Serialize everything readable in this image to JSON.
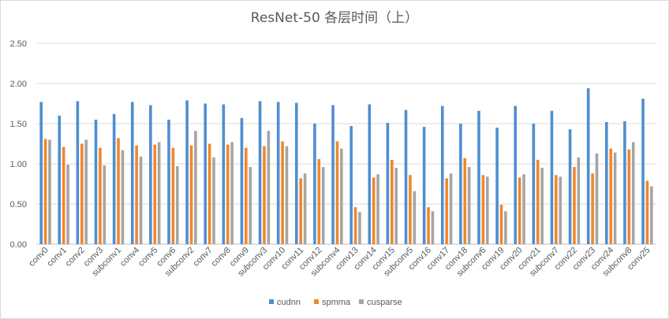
{
  "chart_data": {
    "type": "bar",
    "title": "ResNet-50 各层时间（上）",
    "ylim": [
      0,
      2.5
    ],
    "yticks": [
      "0.00",
      "0.50",
      "1.00",
      "1.50",
      "2.00",
      "2.50"
    ],
    "grid": true,
    "legend_position": "bottom",
    "categories": [
      "conv0",
      "conv1",
      "conv2",
      "conv3",
      "subconv1",
      "conv4",
      "conv5",
      "conv6",
      "subconv2",
      "conv7",
      "conv8",
      "conv9",
      "subconv3",
      "conv10",
      "conv11",
      "conv12",
      "subconv4",
      "conv13",
      "conv14",
      "conv15",
      "subconv5",
      "conv16",
      "conv17",
      "conv18",
      "subconv6",
      "conv19",
      "conv20",
      "conv21",
      "subconv7",
      "conv22",
      "conv23",
      "conv24",
      "subconv8",
      "conv25"
    ],
    "series": [
      {
        "name": "cudnn",
        "color": "#4e8fd0",
        "values": [
          1.77,
          1.6,
          1.78,
          1.55,
          1.62,
          1.77,
          1.73,
          1.55,
          1.79,
          1.75,
          1.74,
          1.57,
          1.78,
          1.77,
          1.76,
          1.5,
          1.73,
          1.47,
          1.74,
          1.51,
          1.67,
          1.46,
          1.72,
          1.5,
          1.66,
          1.45,
          1.72,
          1.5,
          1.66,
          1.43,
          1.94,
          1.52,
          1.53,
          1.81
        ]
      },
      {
        "name": "spmma",
        "color": "#f0872e",
        "values": [
          1.31,
          1.21,
          1.25,
          1.2,
          1.32,
          1.23,
          1.24,
          1.2,
          1.23,
          1.25,
          1.24,
          1.2,
          1.22,
          1.28,
          0.82,
          1.06,
          1.28,
          0.46,
          0.83,
          1.05,
          0.86,
          0.46,
          0.82,
          1.07,
          0.86,
          0.49,
          0.83,
          1.05,
          0.86,
          0.96,
          0.88,
          1.19,
          1.18,
          0.79
        ]
      },
      {
        "name": "cusparse",
        "color": "#a5a5a5",
        "values": [
          1.3,
          0.99,
          1.3,
          0.98,
          1.17,
          1.09,
          1.27,
          0.97,
          1.41,
          1.08,
          1.27,
          0.96,
          1.41,
          1.22,
          0.88,
          0.96,
          1.19,
          0.4,
          0.87,
          0.95,
          0.66,
          0.41,
          0.88,
          0.96,
          0.84,
          0.41,
          0.87,
          0.95,
          0.84,
          1.08,
          1.13,
          1.14,
          1.27,
          0.72
        ]
      }
    ]
  }
}
